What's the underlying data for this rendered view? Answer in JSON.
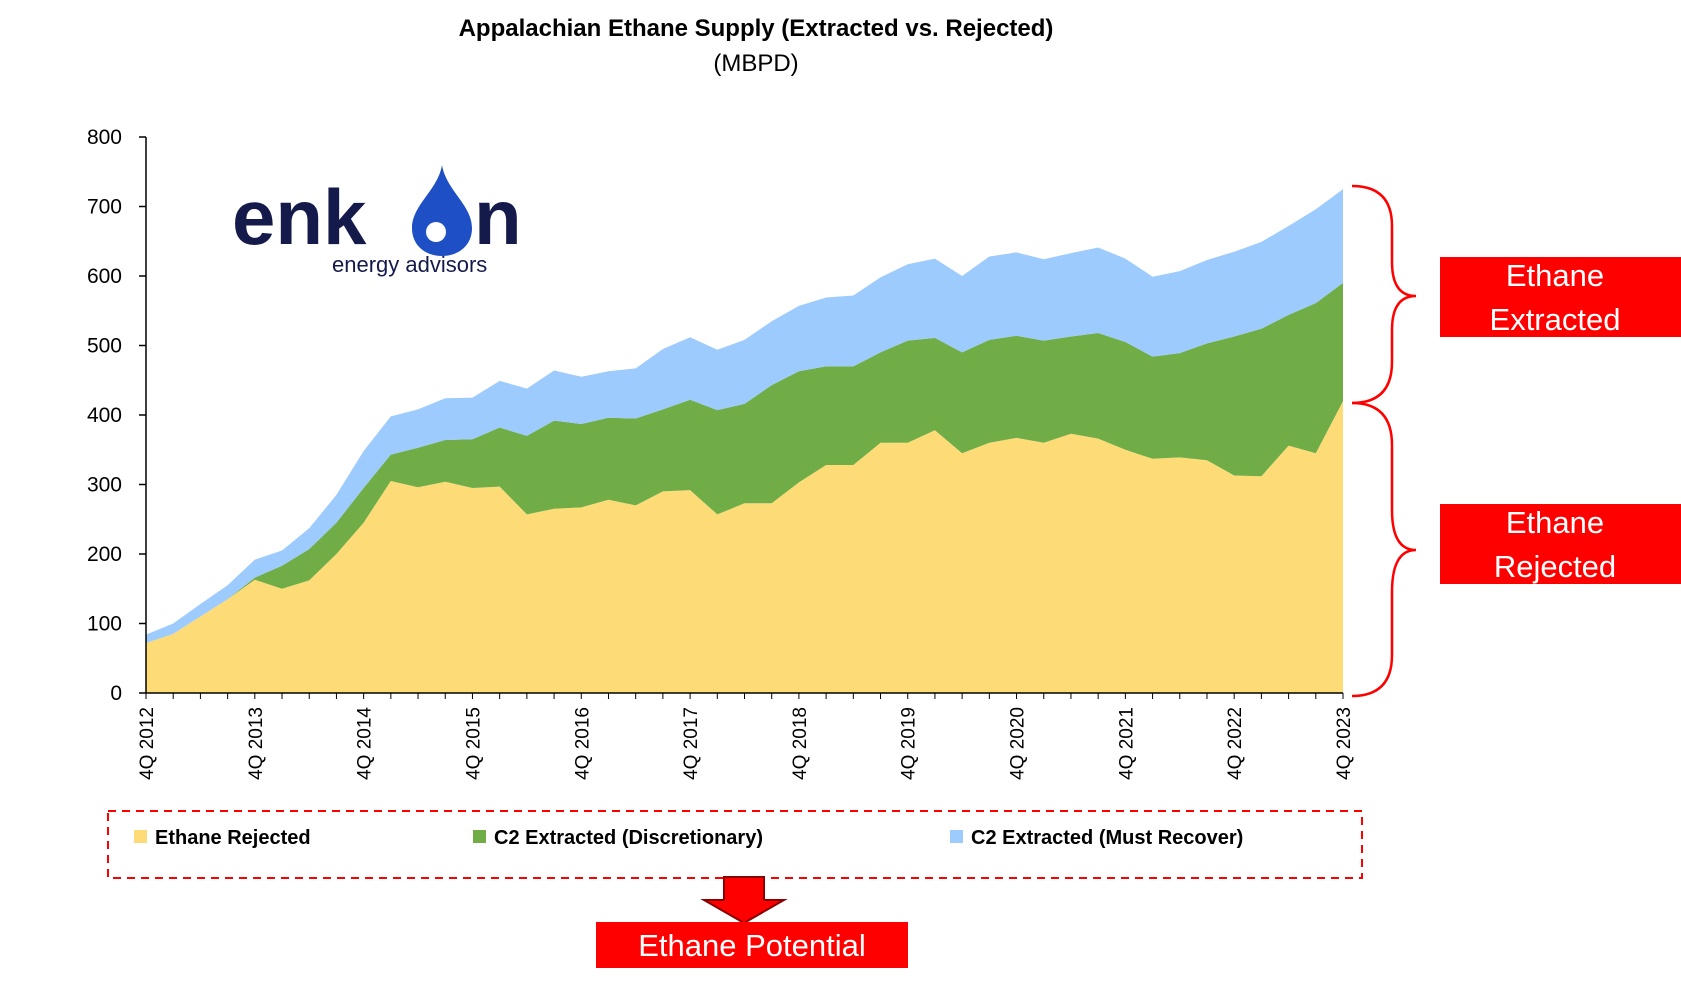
{
  "chart_data": {
    "type": "area",
    "stacked": true,
    "title": "Appalachian Ethane Supply (Extracted vs. Rejected)",
    "subtitle": "(MBPD)",
    "ylim": [
      0,
      800
    ],
    "yticks": [
      0,
      100,
      200,
      300,
      400,
      500,
      600,
      700,
      800
    ],
    "grid": false,
    "x_tick_labels": [
      "4Q 2012",
      "4Q 2013",
      "4Q 2014",
      "4Q 2015",
      "4Q 2016",
      "4Q 2017",
      "4Q 2018",
      "4Q 2019",
      "4Q 2020",
      "4Q 2021",
      "4Q 2022",
      "4Q 2023"
    ],
    "x_start_quarter": "4Q 2012",
    "legend_position": "bottom",
    "series": [
      {
        "name": "Ethane Rejected",
        "color": "#fddc78",
        "values": [
          72,
          85,
          110,
          135,
          163,
          150,
          162,
          200,
          245,
          305,
          296,
          304,
          295,
          297,
          257,
          265,
          267,
          278,
          270,
          290,
          292,
          257,
          273,
          273,
          303,
          328,
          328,
          360,
          360,
          378,
          345,
          360,
          367,
          360,
          373,
          366,
          350,
          337,
          339,
          335,
          313,
          312,
          356,
          345,
          420
        ]
      },
      {
        "name": "C2  Extracted (Discretionary)",
        "color": "#70ad47",
        "values": [
          0,
          0,
          0,
          0,
          3,
          33,
          45,
          45,
          50,
          38,
          57,
          60,
          70,
          85,
          113,
          127,
          120,
          118,
          125,
          118,
          130,
          150,
          143,
          170,
          160,
          142,
          142,
          130,
          147,
          133,
          145,
          148,
          147,
          147,
          140,
          152,
          155,
          147,
          150,
          168,
          200,
          212,
          188,
          216,
          170
        ]
      },
      {
        "name": "C2  Extracted (Must Recover)",
        "color": "#9dcbfd",
        "values": [
          12,
          15,
          18,
          20,
          26,
          22,
          30,
          40,
          53,
          55,
          55,
          60,
          60,
          67,
          68,
          72,
          68,
          67,
          72,
          87,
          90,
          87,
          92,
          92,
          94,
          99,
          102,
          108,
          110,
          114,
          110,
          120,
          120,
          117,
          120,
          123,
          120,
          115,
          118,
          120,
          122,
          125,
          128,
          135,
          135
        ]
      }
    ]
  },
  "logo": {
    "word": "enkon",
    "word_left": "enk",
    "word_right": "n",
    "tagline": "energy advisors"
  },
  "callouts": {
    "extracted": [
      "Ethane",
      "Extracted"
    ],
    "rejected": [
      "Ethane",
      "Rejected"
    ],
    "potential": "Ethane Potential"
  },
  "colors": {
    "callout_red": "#ff0000",
    "axis": "#000000"
  }
}
